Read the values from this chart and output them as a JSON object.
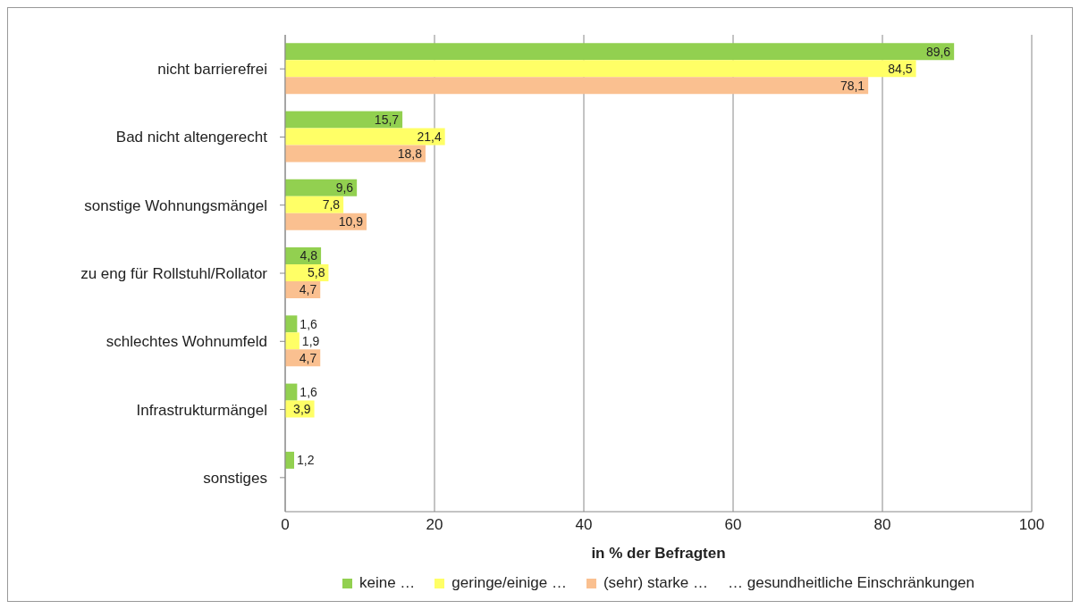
{
  "chart_data": {
    "type": "bar",
    "orientation": "horizontal",
    "xlabel": "in % der Befragten",
    "categories": [
      "nicht barrierefrei",
      "Bad nicht altengerecht",
      "sonstige Wohnungsmängel",
      "zu eng für Rollstuhl/Rollator",
      "schlechtes Wohnumfeld",
      "Infrastrukturmängel",
      "sonstiges"
    ],
    "series": [
      {
        "name": "keine …",
        "color": "#92d050",
        "values": [
          89.6,
          15.7,
          9.6,
          4.8,
          1.6,
          1.6,
          1.2
        ],
        "value_labels": [
          "89,6",
          "15,7",
          "9,6",
          "4,8",
          "1,6",
          "1,6",
          "1,2"
        ]
      },
      {
        "name": "geringe/einige …",
        "color": "#ffff66",
        "values": [
          84.5,
          21.4,
          7.8,
          5.8,
          1.9,
          3.9,
          null
        ],
        "value_labels": [
          "84,5",
          "21,4",
          "7,8",
          "5,8",
          "1,9",
          "3,9",
          null
        ]
      },
      {
        "name": "(sehr) starke  …",
        "color": "#fac090",
        "values": [
          78.1,
          18.8,
          10.9,
          4.7,
          4.7,
          null,
          null
        ],
        "value_labels": [
          "78,1",
          "18,8",
          "10,9",
          "4,7",
          "4,7",
          null,
          null
        ]
      }
    ],
    "annotations": [
      "… gesundheitliche Einschränkungen"
    ],
    "xlim": [
      0,
      100
    ],
    "xticks": [
      0,
      20,
      40,
      60,
      80,
      100
    ],
    "grid": "x",
    "legend": "bottom"
  }
}
